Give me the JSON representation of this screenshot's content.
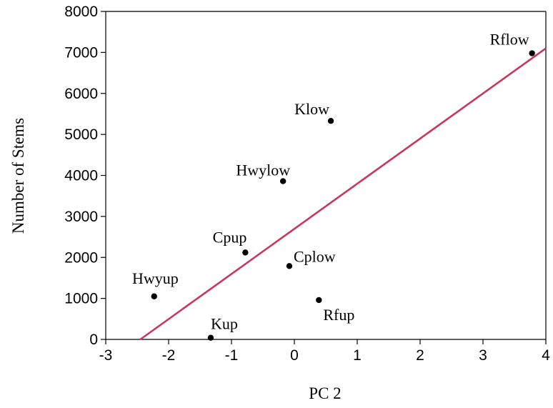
{
  "chart_data": {
    "type": "scatter",
    "xlabel": "PC 2",
    "ylabel": "Number of Stems",
    "xlim": [
      -3,
      4
    ],
    "ylim": [
      0,
      8000
    ],
    "xticks": [
      "-3",
      "-2",
      "-1",
      "0",
      "1",
      "2",
      "3",
      "4"
    ],
    "yticks": [
      "0",
      "1000",
      "2000",
      "3000",
      "4000",
      "5000",
      "6000",
      "7000",
      "8000"
    ],
    "grid": false,
    "points": [
      {
        "label": "Rflow",
        "x": 3.78,
        "y": 6980
      },
      {
        "label": "Klow",
        "x": 0.58,
        "y": 5330
      },
      {
        "label": "Hwylow",
        "x": -0.18,
        "y": 3860
      },
      {
        "label": "Cpup",
        "x": -0.78,
        "y": 2120
      },
      {
        "label": "Cplow",
        "x": -0.08,
        "y": 1790
      },
      {
        "label": "Hwyup",
        "x": -2.23,
        "y": 1050
      },
      {
        "label": "Rfup",
        "x": 0.39,
        "y": 960
      },
      {
        "label": "Kup",
        "x": -1.33,
        "y": 40
      }
    ],
    "fit_line": {
      "x": [
        -2.45,
        4.0
      ],
      "y": [
        0,
        7100
      ],
      "color": "#c8385e"
    }
  }
}
